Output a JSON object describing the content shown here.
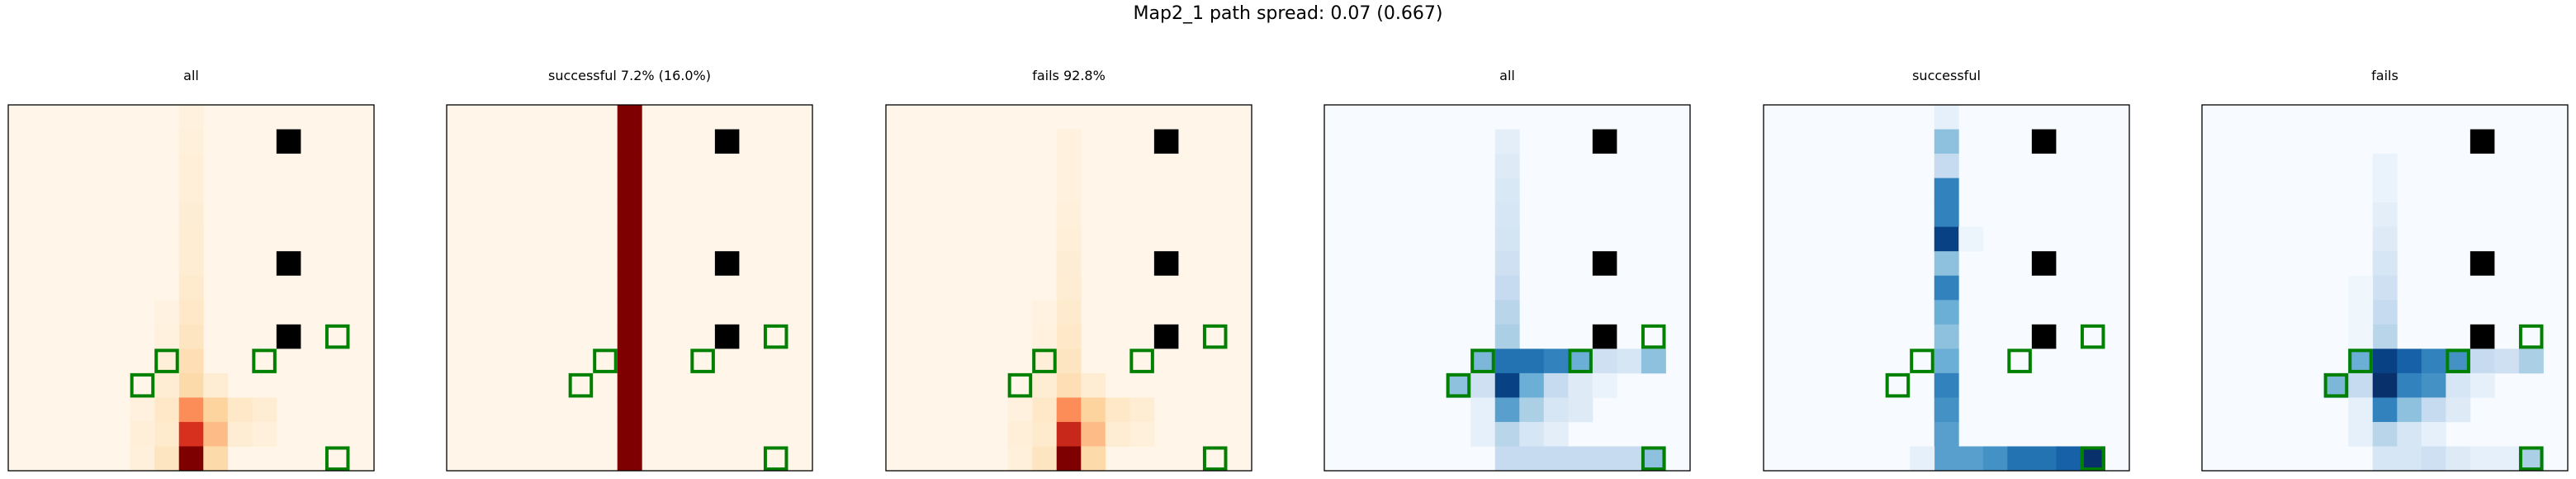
{
  "suptitle": "Map2_1 path spread: 0.07 (0.667)",
  "chart_data": {
    "type": "heatmap",
    "grid_size": 15,
    "obstacles": [
      [
        11,
        1
      ],
      [
        11,
        6
      ],
      [
        11,
        9
      ]
    ],
    "targets": [
      [
        6,
        10
      ],
      [
        10,
        10
      ],
      [
        13,
        9
      ],
      [
        5,
        11
      ],
      [
        13,
        14
      ]
    ],
    "colors": {
      "obstacle": "#000000",
      "target_edge": "#008000",
      "frame": "#000000"
    },
    "panels": [
      {
        "title": "all",
        "colormap": "OrRd",
        "cells": [
          [
            7,
            0,
            0.04
          ],
          [
            7,
            1,
            0.05
          ],
          [
            7,
            2,
            0.06
          ],
          [
            7,
            3,
            0.06
          ],
          [
            7,
            4,
            0.07
          ],
          [
            7,
            5,
            0.08
          ],
          [
            7,
            6,
            0.08
          ],
          [
            7,
            7,
            0.1
          ],
          [
            7,
            8,
            0.12
          ],
          [
            7,
            9,
            0.15
          ],
          [
            7,
            10,
            0.2
          ],
          [
            7,
            11,
            0.25
          ],
          [
            6,
            8,
            0.03
          ],
          [
            6,
            9,
            0.04
          ],
          [
            6,
            10,
            0.06
          ],
          [
            6,
            11,
            0.08
          ],
          [
            6,
            12,
            0.12
          ],
          [
            6,
            13,
            0.1
          ],
          [
            5,
            12,
            0.04
          ],
          [
            5,
            13,
            0.06
          ],
          [
            5,
            14,
            0.05
          ],
          [
            6,
            14,
            0.15
          ],
          [
            7,
            12,
            0.45
          ],
          [
            7,
            13,
            0.7
          ],
          [
            7,
            14,
            1.0
          ],
          [
            8,
            11,
            0.08
          ],
          [
            8,
            12,
            0.3
          ],
          [
            8,
            13,
            0.35
          ],
          [
            8,
            14,
            0.25
          ],
          [
            9,
            12,
            0.12
          ],
          [
            9,
            13,
            0.08
          ],
          [
            10,
            12,
            0.08
          ],
          [
            10,
            13,
            0.05
          ]
        ]
      },
      {
        "title": "successful 7.2% (16.0%)",
        "colormap": "OrRd",
        "cells": [
          [
            7,
            0,
            1
          ],
          [
            7,
            1,
            1
          ],
          [
            7,
            2,
            1
          ],
          [
            7,
            3,
            1
          ],
          [
            7,
            4,
            1
          ],
          [
            7,
            5,
            1
          ],
          [
            7,
            6,
            1
          ],
          [
            7,
            7,
            1
          ],
          [
            7,
            8,
            1
          ],
          [
            7,
            9,
            1
          ],
          [
            7,
            10,
            1
          ],
          [
            7,
            11,
            1
          ],
          [
            7,
            12,
            1
          ],
          [
            7,
            13,
            1
          ],
          [
            7,
            14,
            1
          ]
        ]
      },
      {
        "title": "fails 92.8%",
        "colormap": "OrRd",
        "cells": [
          [
            7,
            1,
            0.04
          ],
          [
            7,
            2,
            0.04
          ],
          [
            7,
            3,
            0.04
          ],
          [
            7,
            4,
            0.05
          ],
          [
            7,
            5,
            0.06
          ],
          [
            7,
            6,
            0.07
          ],
          [
            7,
            7,
            0.08
          ],
          [
            7,
            8,
            0.1
          ],
          [
            7,
            9,
            0.12
          ],
          [
            7,
            10,
            0.15
          ],
          [
            7,
            11,
            0.2
          ],
          [
            6,
            8,
            0.03
          ],
          [
            6,
            9,
            0.04
          ],
          [
            6,
            10,
            0.06
          ],
          [
            6,
            11,
            0.08
          ],
          [
            6,
            12,
            0.12
          ],
          [
            6,
            13,
            0.1
          ],
          [
            5,
            12,
            0.04
          ],
          [
            5,
            13,
            0.06
          ],
          [
            5,
            14,
            0.05
          ],
          [
            6,
            14,
            0.15
          ],
          [
            7,
            12,
            0.45
          ],
          [
            7,
            13,
            0.75
          ],
          [
            7,
            14,
            1.0
          ],
          [
            8,
            11,
            0.08
          ],
          [
            8,
            12,
            0.3
          ],
          [
            8,
            13,
            0.35
          ],
          [
            8,
            14,
            0.25
          ],
          [
            9,
            12,
            0.12
          ],
          [
            9,
            13,
            0.08
          ],
          [
            10,
            12,
            0.08
          ],
          [
            10,
            13,
            0.05
          ]
        ]
      },
      {
        "title": "all",
        "colormap": "Blues",
        "cells": [
          [
            7,
            1,
            0.12
          ],
          [
            7,
            2,
            0.15
          ],
          [
            7,
            3,
            0.18
          ],
          [
            7,
            4,
            0.2
          ],
          [
            7,
            5,
            0.22
          ],
          [
            7,
            6,
            0.25
          ],
          [
            7,
            7,
            0.3
          ],
          [
            7,
            8,
            0.35
          ],
          [
            7,
            9,
            0.4
          ],
          [
            6,
            10,
            0.55
          ],
          [
            7,
            10,
            0.8
          ],
          [
            8,
            10,
            0.8
          ],
          [
            9,
            10,
            0.75
          ],
          [
            10,
            10,
            0.6
          ],
          [
            11,
            10,
            0.25
          ],
          [
            12,
            10,
            0.2
          ],
          [
            13,
            10,
            0.5
          ],
          [
            5,
            11,
            0.5
          ],
          [
            6,
            11,
            0.25
          ],
          [
            7,
            11,
            0.95
          ],
          [
            8,
            11,
            0.6
          ],
          [
            9,
            11,
            0.3
          ],
          [
            10,
            11,
            0.15
          ],
          [
            11,
            11,
            0.08
          ],
          [
            6,
            12,
            0.1
          ],
          [
            7,
            12,
            0.65
          ],
          [
            8,
            12,
            0.4
          ],
          [
            9,
            12,
            0.2
          ],
          [
            10,
            12,
            0.15
          ],
          [
            6,
            13,
            0.1
          ],
          [
            7,
            13,
            0.35
          ],
          [
            8,
            13,
            0.2
          ],
          [
            9,
            13,
            0.12
          ],
          [
            7,
            14,
            0.3
          ],
          [
            8,
            14,
            0.3
          ],
          [
            9,
            14,
            0.3
          ],
          [
            10,
            14,
            0.3
          ],
          [
            11,
            14,
            0.3
          ],
          [
            12,
            14,
            0.3
          ],
          [
            13,
            14,
            0.5
          ]
        ]
      },
      {
        "title": "successful",
        "colormap": "Blues",
        "cells": [
          [
            7,
            0,
            0.1
          ],
          [
            7,
            1,
            0.5
          ],
          [
            7,
            2,
            0.3
          ],
          [
            7,
            3,
            0.75
          ],
          [
            7,
            4,
            0.75
          ],
          [
            7,
            5,
            0.95
          ],
          [
            7,
            6,
            0.5
          ],
          [
            7,
            7,
            0.75
          ],
          [
            7,
            8,
            0.6
          ],
          [
            7,
            9,
            0.5
          ],
          [
            7,
            10,
            0.6
          ],
          [
            7,
            11,
            0.75
          ],
          [
            7,
            12,
            0.7
          ],
          [
            7,
            13,
            0.65
          ],
          [
            7,
            14,
            0.65
          ],
          [
            8,
            5,
            0.06
          ],
          [
            6,
            14,
            0.1
          ],
          [
            8,
            14,
            0.65
          ],
          [
            9,
            14,
            0.7
          ],
          [
            10,
            14,
            0.8
          ],
          [
            11,
            14,
            0.8
          ],
          [
            12,
            14,
            0.85
          ],
          [
            13,
            14,
            1.0
          ]
        ]
      },
      {
        "title": "fails",
        "colormap": "Blues",
        "cells": [
          [
            7,
            2,
            0.08
          ],
          [
            7,
            3,
            0.08
          ],
          [
            7,
            4,
            0.12
          ],
          [
            7,
            5,
            0.15
          ],
          [
            7,
            6,
            0.2
          ],
          [
            7,
            7,
            0.25
          ],
          [
            7,
            8,
            0.3
          ],
          [
            7,
            9,
            0.35
          ],
          [
            6,
            7,
            0.05
          ],
          [
            6,
            8,
            0.05
          ],
          [
            6,
            9,
            0.05
          ],
          [
            6,
            10,
            0.6
          ],
          [
            7,
            10,
            0.95
          ],
          [
            8,
            10,
            0.85
          ],
          [
            9,
            10,
            0.75
          ],
          [
            10,
            10,
            0.7
          ],
          [
            11,
            10,
            0.3
          ],
          [
            12,
            10,
            0.25
          ],
          [
            13,
            10,
            0.4
          ],
          [
            5,
            11,
            0.55
          ],
          [
            6,
            11,
            0.3
          ],
          [
            7,
            11,
            1.0
          ],
          [
            8,
            11,
            0.75
          ],
          [
            9,
            11,
            0.7
          ],
          [
            10,
            11,
            0.2
          ],
          [
            11,
            11,
            0.1
          ],
          [
            6,
            12,
            0.1
          ],
          [
            7,
            12,
            0.75
          ],
          [
            8,
            12,
            0.5
          ],
          [
            9,
            12,
            0.3
          ],
          [
            10,
            12,
            0.15
          ],
          [
            6,
            13,
            0.1
          ],
          [
            7,
            13,
            0.35
          ],
          [
            8,
            13,
            0.2
          ],
          [
            9,
            13,
            0.1
          ],
          [
            7,
            14,
            0.2
          ],
          [
            8,
            14,
            0.2
          ],
          [
            9,
            14,
            0.25
          ],
          [
            10,
            14,
            0.15
          ],
          [
            11,
            14,
            0.1
          ],
          [
            12,
            14,
            0.1
          ],
          [
            13,
            14,
            0.4
          ]
        ]
      }
    ]
  }
}
